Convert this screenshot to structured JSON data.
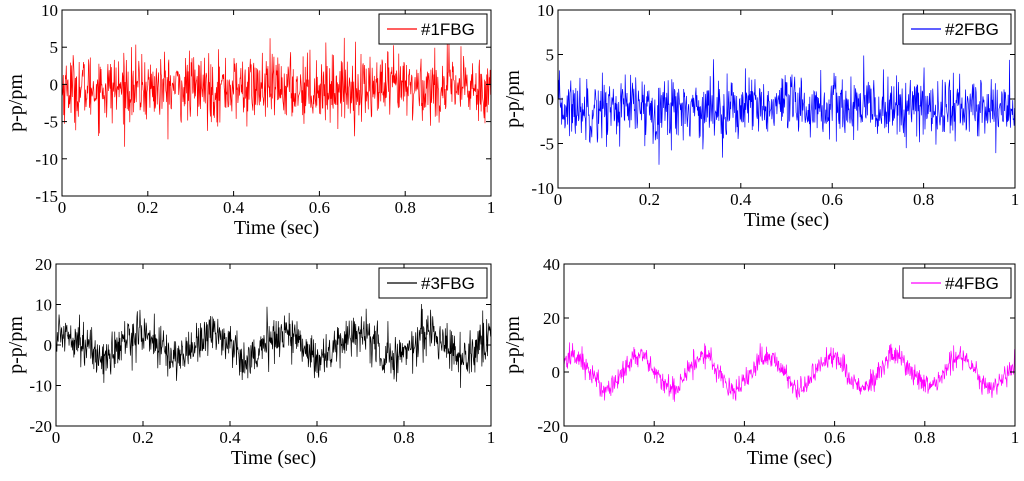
{
  "chart_data": [
    {
      "type": "line",
      "title": "",
      "xlabel": "Time (sec)",
      "ylabel": "p-p/pm",
      "xlim": [
        0,
        1
      ],
      "ylim": [
        -15,
        10
      ],
      "xticks": [
        0,
        0.2,
        0.4,
        0.6,
        0.8,
        1
      ],
      "xtick_labels": [
        "0",
        "0.2",
        "0.4",
        "0.6",
        "0.8",
        "1"
      ],
      "yticks": [
        -15,
        -10,
        -5,
        0,
        5,
        10
      ],
      "ytick_labels": [
        "-15",
        "-10",
        "-5",
        "0",
        "5",
        "10"
      ],
      "legend": "top-right",
      "series": [
        {
          "name": "#1FBG",
          "color": "#ff0000",
          "noise_amplitude": 5,
          "sine_amplitude": 0,
          "sine_frequency_hz": 0,
          "offset": -0.5,
          "samples": 1000
        }
      ]
    },
    {
      "type": "line",
      "title": "",
      "xlabel": "Time (sec)",
      "ylabel": "p-p/pm",
      "xlim": [
        0,
        1
      ],
      "ylim": [
        -10,
        10
      ],
      "xticks": [
        0,
        0.2,
        0.4,
        0.6,
        0.8,
        1
      ],
      "xtick_labels": [
        "0",
        "0.2",
        "0.4",
        "0.6",
        "0.8",
        "1"
      ],
      "yticks": [
        -10,
        -5,
        0,
        5,
        10
      ],
      "ytick_labels": [
        "-10",
        "-5",
        "0",
        "5",
        "10"
      ],
      "legend": "top-right",
      "series": [
        {
          "name": "#2FBG",
          "color": "#0000ff",
          "noise_amplitude": 4,
          "sine_amplitude": 0,
          "sine_frequency_hz": 0,
          "offset": -1,
          "samples": 1000
        }
      ]
    },
    {
      "type": "line",
      "title": "",
      "xlabel": "Time (sec)",
      "ylabel": "p-p/pm",
      "xlim": [
        0,
        1
      ],
      "ylim": [
        -20,
        20
      ],
      "xticks": [
        0,
        0.2,
        0.4,
        0.6,
        0.8,
        1
      ],
      "xtick_labels": [
        "0",
        "0.2",
        "0.4",
        "0.6",
        "0.8",
        "1"
      ],
      "yticks": [
        -20,
        -10,
        0,
        10,
        20
      ],
      "ytick_labels": [
        "-20",
        "-10",
        "0",
        "10",
        "20"
      ],
      "legend": "top-right",
      "series": [
        {
          "name": "#3FBG",
          "color": "#000000",
          "noise_amplitude": 6,
          "sine_amplitude": 3,
          "sine_frequency_hz": 6,
          "offset": 0,
          "samples": 1000
        }
      ]
    },
    {
      "type": "line",
      "title": "",
      "xlabel": "Time (sec)",
      "ylabel": "p-p/pm",
      "xlim": [
        0,
        1
      ],
      "ylim": [
        -20,
        40
      ],
      "xticks": [
        0,
        0.2,
        0.4,
        0.6,
        0.8,
        1
      ],
      "xtick_labels": [
        "0",
        "0.2",
        "0.4",
        "0.6",
        "0.8",
        "1"
      ],
      "yticks": [
        -20,
        0,
        20,
        40
      ],
      "ytick_labels": [
        "-20",
        "0",
        "20",
        "40"
      ],
      "legend": "top-right",
      "series": [
        {
          "name": "#4FBG",
          "color": "#ff00ff",
          "noise_amplitude": 5,
          "sine_amplitude": 6,
          "sine_frequency_hz": 7,
          "offset": 0,
          "samples": 1000
        }
      ]
    }
  ]
}
